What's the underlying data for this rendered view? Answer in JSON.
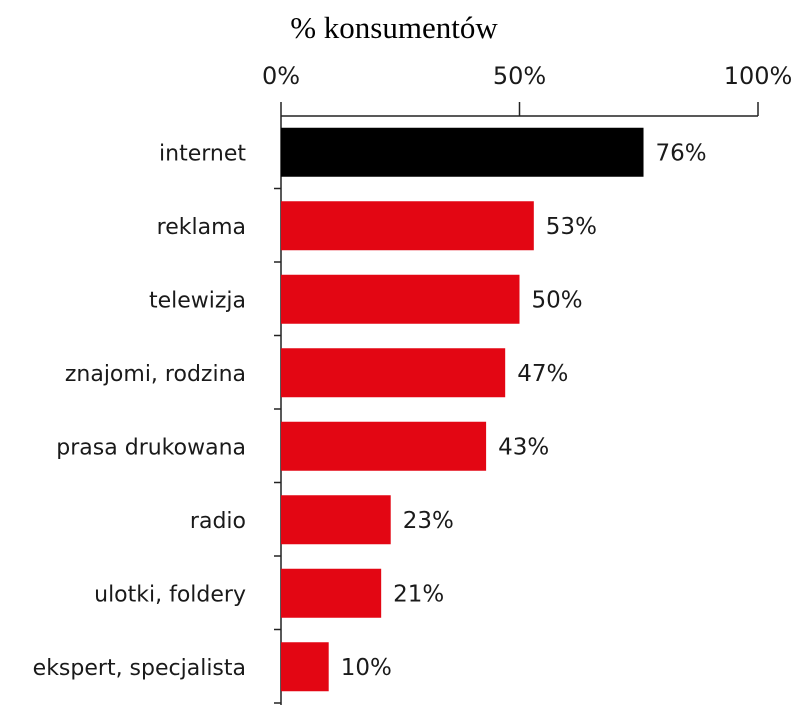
{
  "chart_data": {
    "type": "bar",
    "orientation": "horizontal",
    "title": "% konsumentów",
    "xlabel": "",
    "ylabel": "",
    "xlim": [
      0,
      100
    ],
    "ticks": [
      {
        "value": 0,
        "label": "0%"
      },
      {
        "value": 50,
        "label": "50%"
      },
      {
        "value": 100,
        "label": "100%"
      }
    ],
    "tick_position": "top",
    "grid": false,
    "legend": "none",
    "categories": [
      "internet",
      "reklama",
      "telewizja",
      "znajomi, rodzina",
      "prasa drukowana",
      "radio",
      "ulotki, foldery",
      "ekspert, specjalista"
    ],
    "values": [
      76,
      53,
      50,
      47,
      43,
      23,
      21,
      10
    ],
    "value_labels": [
      "76%",
      "53%",
      "50%",
      "47%",
      "43%",
      "23%",
      "21%",
      "10%"
    ],
    "colors": {
      "highlight": "#000000",
      "default": "#e30613"
    },
    "highlight_category": "internet"
  }
}
